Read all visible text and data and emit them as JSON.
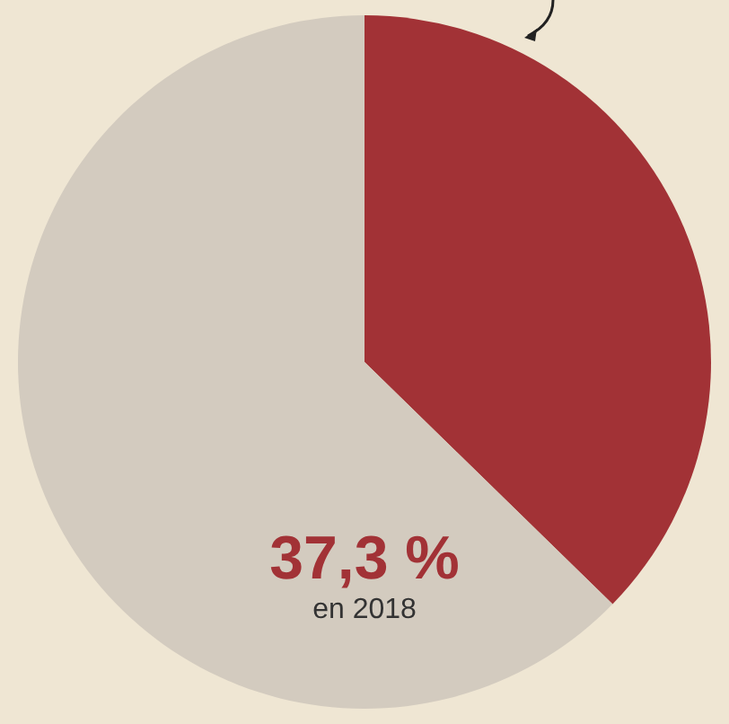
{
  "chart_data": {
    "type": "pie",
    "categories": [
      null,
      null
    ],
    "values": [
      37.3,
      62.7
    ],
    "colors": [
      "#a23236",
      "#d3cbbf"
    ],
    "annotations": [
      "37,3 %",
      "en 2018"
    ],
    "legend": false
  }
}
